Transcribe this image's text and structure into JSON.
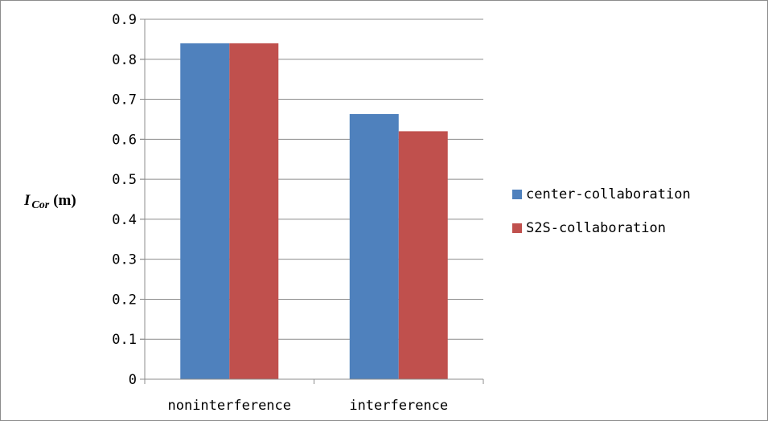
{
  "chart_data": {
    "type": "bar",
    "ylabel_main": "I",
    "ylabel_sub": "Cor",
    "ylabel_unit": "(m)",
    "categories": [
      "noninterference",
      "interference"
    ],
    "series": [
      {
        "name": "center-collaboration",
        "values": [
          0.84,
          0.663
        ],
        "color": "#4f81bd"
      },
      {
        "name": "S2S-collaboration",
        "values": [
          0.84,
          0.62
        ],
        "color": "#c0504d"
      }
    ],
    "ylim": [
      0,
      0.9
    ],
    "yticks": [
      "0",
      "0.1",
      "0.2",
      "0.3",
      "0.4",
      "0.5",
      "0.6",
      "0.7",
      "0.8",
      "0.9"
    ],
    "grid": true,
    "legend_position": "right"
  }
}
